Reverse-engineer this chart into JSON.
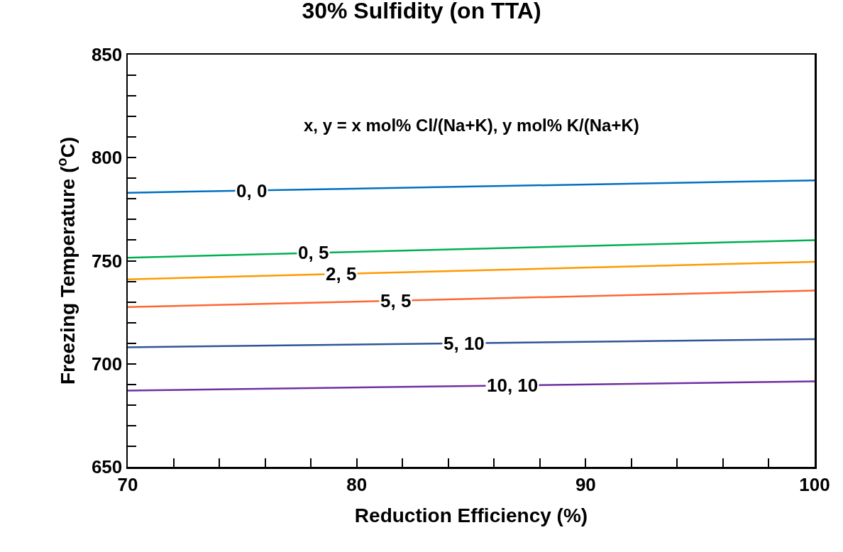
{
  "chart_data": {
    "type": "line",
    "title": "30% Sulfidity (on TTA)",
    "xlabel": "Reduction Efficiency (%)",
    "ylabel": "Freezing Temperature ($^{o}$C)",
    "annotations": [
      "x, y = x mol% Cl/(Na+K), y mol% K/(Na+K)"
    ],
    "x": [
      70,
      100
    ],
    "series": [
      {
        "name": "0, 0",
        "color": "#0070c0",
        "values": [
          783,
          789
        ]
      },
      {
        "name": "0, 5",
        "color": "#00b050",
        "values": [
          751.5,
          760
        ]
      },
      {
        "name": "2, 5",
        "color": "#ff9900",
        "values": [
          741,
          749.5
        ]
      },
      {
        "name": "5, 5",
        "color": "#ff6633",
        "values": [
          727.5,
          735.5
        ]
      },
      {
        "name": "5, 10",
        "color": "#2f5597",
        "values": [
          708,
          712
        ]
      },
      {
        "name": "10, 10",
        "color": "#7030a0",
        "values": [
          687,
          691.5
        ]
      }
    ],
    "xlim": [
      70,
      100
    ],
    "xticks": [
      70,
      {
        "value": 72,
        "label": null
      },
      {
        "value": 74,
        "label": null
      },
      {
        "value": 76,
        "label": null
      },
      {
        "value": 78,
        "label": null
      },
      80,
      {
        "value": 82,
        "label": null
      },
      {
        "value": 84,
        "label": null
      },
      {
        "value": 86,
        "label": null
      },
      {
        "value": 88,
        "label": null
      },
      90,
      {
        "value": 92,
        "label": null
      },
      {
        "value": 94,
        "label": null
      },
      {
        "value": 96,
        "label": null
      },
      {
        "value": 98,
        "label": null
      },
      100
    ],
    "ylim": [
      650,
      850
    ],
    "yticks": [
      650,
      {
        "value": 660,
        "label": null
      },
      {
        "value": 670,
        "label": null
      },
      {
        "value": 680,
        "label": null
      },
      {
        "value": 690,
        "label": null
      },
      700,
      {
        "value": 710,
        "label": null
      },
      {
        "value": 720,
        "label": null
      },
      {
        "value": 730,
        "label": null
      },
      {
        "value": 740,
        "label": null
      },
      750,
      {
        "value": 760,
        "label": null
      },
      {
        "value": 770,
        "label": null
      },
      {
        "value": 780,
        "label": null
      },
      {
        "value": 790,
        "label": null
      },
      800,
      {
        "value": 810,
        "label": null
      },
      {
        "value": 820,
        "label": null
      },
      {
        "value": 830,
        "label": null
      },
      {
        "value": 840,
        "label": null
      },
      850
    ],
    "grid": false,
    "legend": false,
    "marker": "none",
    "line_style": "solid"
  }
}
